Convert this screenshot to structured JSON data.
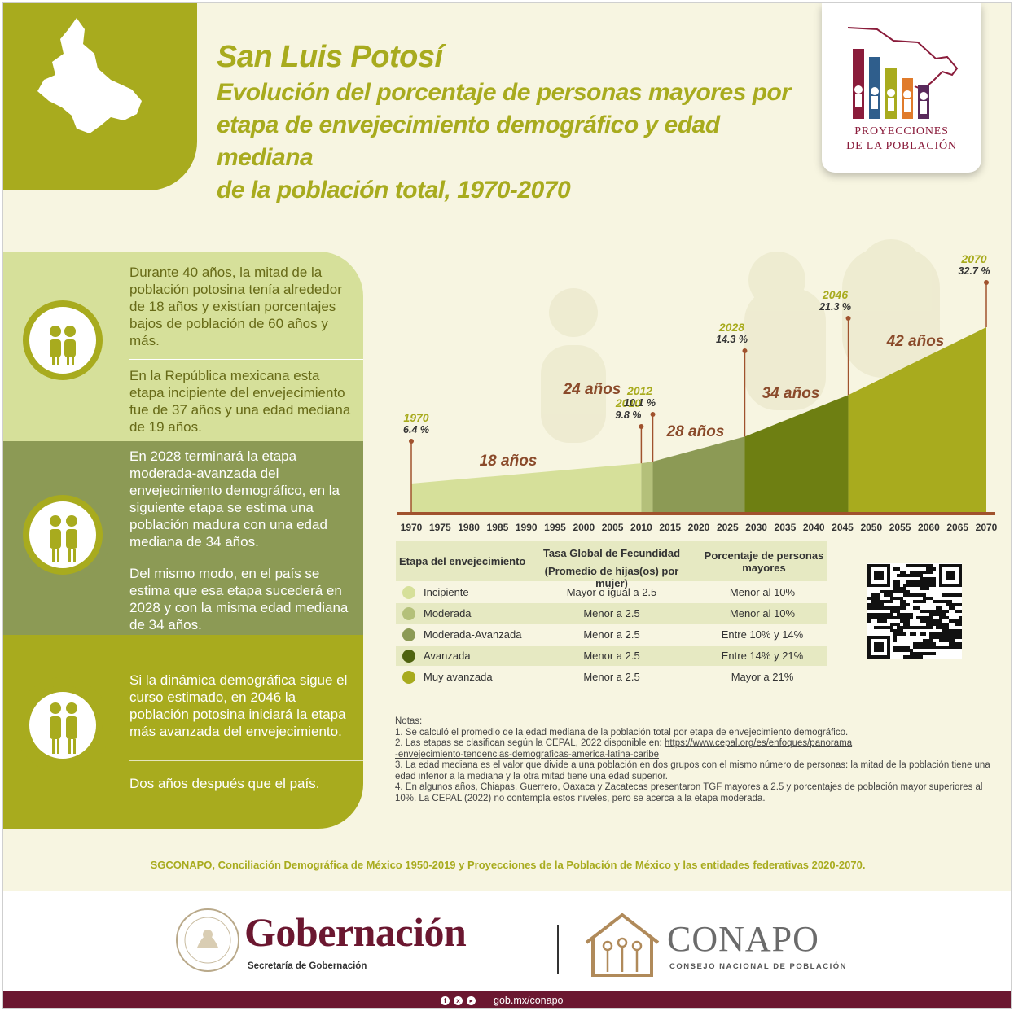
{
  "header": {
    "state": "San Luis Potosí",
    "title_line1": "Evolución del porcentaje de personas mayores por",
    "title_line2": "etapa de envejecimiento demográfico y edad mediana",
    "title_line3": "de la población total, 1970-2070"
  },
  "logo": {
    "line1": "PROYECCIONES",
    "line2": "DE LA POBLACIÓN"
  },
  "panels": {
    "p1a": "Durante 40 años, la mitad de la población potosina tenía alrededor de 18 años y existían porcentajes bajos de población de 60 años y más.",
    "p1b": "En la República mexicana esta etapa incipiente del envejecimiento fue de 37 años y una edad mediana de 19 años.",
    "p2a": "En 2028 terminará la etapa moderada-avanzada del envejecimiento demográfico, en la siguiente etapa se estima una población madura con una edad mediana de 34 años.",
    "p2b": "Del mismo modo, en el país se estima que esa etapa sucederá en 2028 y con la misma edad mediana de 34 años.",
    "p3a": "Si la dinámica demográfica sigue el curso estimado, en 2046 la población potosina iniciará la etapa más avanzada del envejecimiento.",
    "p3b": "Dos años después que el país."
  },
  "chart_data": {
    "type": "area",
    "x_ticks": [
      "1970",
      "1975",
      "1980",
      "1985",
      "1990",
      "1995",
      "2000",
      "2005",
      "2010",
      "2015",
      "2020",
      "2025",
      "2030",
      "2035",
      "2040",
      "2045",
      "2050",
      "2055",
      "2060",
      "2065",
      "2070"
    ],
    "xlim": [
      1970,
      2070
    ],
    "markers": [
      {
        "year": "1970",
        "pct": "6.4 %"
      },
      {
        "year": "2010",
        "pct": "9.8 %"
      },
      {
        "year": "2012",
        "pct": "10.1 %"
      },
      {
        "year": "2028",
        "pct": "14.3 %"
      },
      {
        "year": "2046",
        "pct": "21.3 %"
      },
      {
        "year": "2070",
        "pct": "32.7 %"
      }
    ],
    "stages": [
      {
        "from": 1970,
        "to": 2010,
        "label": "18 años",
        "color": "#d6e09a"
      },
      {
        "from": 2010,
        "to": 2012,
        "label": "24 años",
        "color": "#b4c07a"
      },
      {
        "from": 2012,
        "to": 2028,
        "label": "28 años",
        "color": "#8c9a55"
      },
      {
        "from": 2028,
        "to": 2046,
        "label": "34 años",
        "color": "#6e7f12"
      },
      {
        "from": 2046,
        "to": 2070,
        "label": "42 años",
        "color": "#a8ab1e"
      }
    ]
  },
  "table": {
    "h1": "Etapa del envejecimiento",
    "h2a": "Tasa Global de Fecundidad",
    "h2b": "(Promedio de hijas(os) por mujer)",
    "h3": "Porcentaje de personas mayores",
    "rows": [
      {
        "stage": "Incipiente",
        "tgf": "Mayor o igual a 2.5",
        "pct": "Menor al 10%",
        "color": "#d6e09a"
      },
      {
        "stage": "Moderada",
        "tgf": "Menor a 2.5",
        "pct": "Menor al 10%",
        "color": "#b4c07a"
      },
      {
        "stage": "Moderada-Avanzada",
        "tgf": "Menor a 2.5",
        "pct": "Entre 10% y 14%",
        "color": "#8c9a55"
      },
      {
        "stage": "Avanzada",
        "tgf": "Menor a 2.5",
        "pct": "Entre 14% y 21%",
        "color": "#4f6310"
      },
      {
        "stage": "Muy avanzada",
        "tgf": "Menor a 2.5",
        "pct": "Mayor a 21%",
        "color": "#a8ab1e"
      }
    ]
  },
  "notes": {
    "title": "Notas:",
    "n1": "1. Se calculó el promedio de la edad mediana de la población total por etapa de envejecimiento demográfico.",
    "n2": "2. Las etapas se clasifican según la CEPAL, 2022 disponible en: ",
    "n2_link1": "https://www.cepal.org/es/enfoques/panorama",
    "n2_link2": "-envejecimiento-tendencias-demograficas-america-latina-caribe",
    "n3": "3. La edad mediana es el valor que divide a una población en dos grupos con el mismo número de personas: la mitad de la población tiene una edad inferior a la mediana y la otra mitad tiene una edad superior.",
    "n4": "4. En algunos años, Chiapas, Guerrero, Oaxaca y Zacatecas presentaron TGF mayores a 2.5 y porcentajes de población mayor superiores al 10%. La CEPAL (2022) no contempla estos niveles, pero se acerca a la etapa moderada."
  },
  "source": "SGCONAPO, Conciliación Demográfica de México 1950-2019 y Proyecciones de la Población de México y las entidades federativas 2020-2070.",
  "footer": {
    "gob": "Gobernación",
    "gob_sub": "Secretaría de Gobernación",
    "conapo": "CONAPO",
    "conapo_sub": "CONSEJO NACIONAL DE POBLACIÓN",
    "url": "gob.mx/conapo"
  },
  "colors": {
    "accent": "#a8ab1e",
    "brand": "#6b1730",
    "marker": "#a0522d"
  }
}
